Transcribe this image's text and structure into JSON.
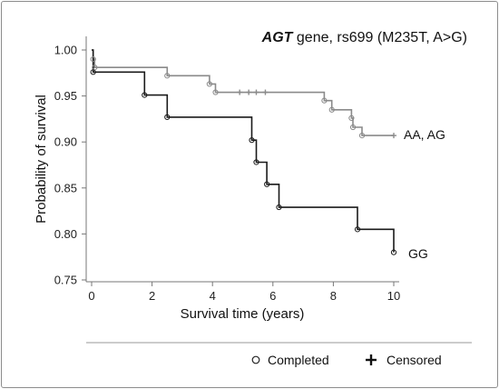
{
  "chart_data": {
    "type": "line",
    "subtype": "kaplan-meier",
    "title_gene": "AGT",
    "title_rest": " gene, rs699 (M235T, A>G)",
    "xlabel": "Survival time (years)",
    "ylabel": "Probability of survival",
    "xlim": [
      0,
      10
    ],
    "ylim": [
      0.75,
      1.0
    ],
    "xticks": [
      0,
      2,
      4,
      6,
      8,
      10
    ],
    "yticks": [
      "0.75",
      "0.80",
      "0.85",
      "0.90",
      "0.95",
      "1.00"
    ],
    "series": [
      {
        "name": "AA, AG",
        "color": "#8a8a8a",
        "steps": [
          [
            0,
            1.0
          ],
          [
            0.05,
            0.99
          ],
          [
            0.1,
            0.981
          ],
          [
            2.5,
            0.972
          ],
          [
            3.9,
            0.963
          ],
          [
            4.1,
            0.954
          ],
          [
            7.7,
            0.945
          ],
          [
            7.95,
            0.935
          ],
          [
            8.6,
            0.926
          ],
          [
            8.65,
            0.916
          ],
          [
            8.95,
            0.907
          ],
          [
            10,
            0.907
          ]
        ],
        "completed": [
          [
            0.05,
            0.99
          ],
          [
            0.1,
            0.981
          ],
          [
            2.5,
            0.972
          ],
          [
            3.9,
            0.963
          ],
          [
            4.1,
            0.954
          ],
          [
            7.7,
            0.945
          ],
          [
            7.95,
            0.935
          ],
          [
            8.6,
            0.926
          ],
          [
            8.65,
            0.916
          ],
          [
            8.95,
            0.907
          ]
        ],
        "censored": [
          [
            4.9,
            0.954
          ],
          [
            5.2,
            0.954
          ],
          [
            5.45,
            0.954
          ],
          [
            5.75,
            0.954
          ],
          [
            10,
            0.907
          ]
        ]
      },
      {
        "name": "GG",
        "color": "#1a1a1a",
        "steps": [
          [
            0,
            1.0
          ],
          [
            0.05,
            0.976
          ],
          [
            1.75,
            0.951
          ],
          [
            2.5,
            0.927
          ],
          [
            5.3,
            0.902
          ],
          [
            5.45,
            0.878
          ],
          [
            5.8,
            0.854
          ],
          [
            6.2,
            0.829
          ],
          [
            8.8,
            0.805
          ],
          [
            10,
            0.78
          ]
        ],
        "completed": [
          [
            0.05,
            0.976
          ],
          [
            1.75,
            0.951
          ],
          [
            2.5,
            0.927
          ],
          [
            5.3,
            0.902
          ],
          [
            5.45,
            0.878
          ],
          [
            5.8,
            0.854
          ],
          [
            6.2,
            0.829
          ],
          [
            8.8,
            0.805
          ],
          [
            10,
            0.78
          ]
        ],
        "censored": []
      }
    ],
    "legend": {
      "placement": "bottom",
      "completed_label": "Completed",
      "censored_label": "Censored"
    }
  }
}
